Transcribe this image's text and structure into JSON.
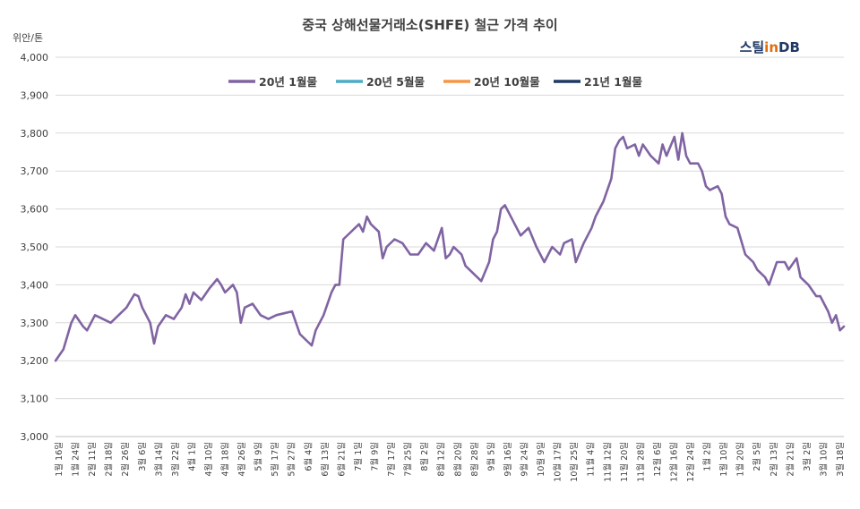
{
  "chart_data": {
    "type": "line",
    "title": "중국 상해선물거래소(SHFE) 철근 가격 추이",
    "ylabel": "위안/톤",
    "ylim": [
      3000,
      4000
    ],
    "yticks": [
      "3,000",
      "3,100",
      "3,200",
      "3,300",
      "3,400",
      "3,500",
      "3,600",
      "3,700",
      "3,800",
      "3,900",
      "4,000"
    ],
    "grid": "horizontal",
    "legend_position": "top",
    "logo": {
      "part1": "스틸",
      "part2": "in",
      "part3": " DB"
    },
    "x_labels": [
      "1월 16일",
      "1월 24일",
      "2월 11일",
      "2월 18일",
      "2월 26일",
      "3월 6일",
      "3월 14일",
      "3월 22일",
      "4월 1일",
      "4월 10일",
      "4월 18일",
      "4월 26일",
      "5월 9일",
      "5월 17일",
      "5월 27일",
      "6월 4일",
      "6월 13일",
      "6월 21일",
      "7월 1일",
      "7월 9일",
      "7월 17일",
      "7월 25일",
      "8월 2일",
      "8월 12일",
      "8월 20일",
      "8월 28일",
      "9월 5일",
      "9월 16일",
      "9월 24일",
      "10월 9일",
      "10월 17일",
      "10월 25일",
      "11월 4일",
      "11월 12일",
      "11월 20일",
      "11월 28일",
      "12월 6일",
      "12월 16일",
      "12월 24일",
      "1월 2일",
      "1월 10일",
      "1월 20일",
      "2월 5일",
      "2월 13일",
      "2월 21일",
      "3월 2일",
      "3월 10일",
      "3월 18일"
    ],
    "x_count": 200,
    "series": [
      {
        "name": "20년 1월물",
        "color": "#8064a2",
        "start_index": 0,
        "points": [
          [
            0,
            3200
          ],
          [
            2,
            3230
          ],
          [
            4,
            3300
          ],
          [
            5,
            3320
          ],
          [
            7,
            3290
          ],
          [
            8,
            3280
          ],
          [
            10,
            3320
          ],
          [
            12,
            3310
          ],
          [
            14,
            3300
          ],
          [
            16,
            3320
          ],
          [
            18,
            3340
          ],
          [
            20,
            3375
          ],
          [
            21,
            3370
          ],
          [
            22,
            3340
          ],
          [
            24,
            3300
          ],
          [
            25,
            3245
          ],
          [
            26,
            3290
          ],
          [
            28,
            3320
          ],
          [
            30,
            3310
          ],
          [
            32,
            3340
          ],
          [
            33,
            3375
          ],
          [
            34,
            3350
          ],
          [
            35,
            3380
          ],
          [
            37,
            3360
          ],
          [
            39,
            3390
          ],
          [
            41,
            3415
          ],
          [
            42,
            3400
          ],
          [
            43,
            3380
          ],
          [
            45,
            3400
          ],
          [
            46,
            3380
          ],
          [
            47,
            3300
          ],
          [
            48,
            3340
          ],
          [
            50,
            3350
          ],
          [
            52,
            3320
          ],
          [
            54,
            3310
          ],
          [
            56,
            3320
          ],
          [
            58,
            3325
          ],
          [
            60,
            3330
          ],
          [
            62,
            3270
          ],
          [
            64,
            3250
          ],
          [
            65,
            3240
          ],
          [
            66,
            3280
          ],
          [
            68,
            3320
          ],
          [
            70,
            3380
          ],
          [
            71,
            3400
          ],
          [
            72,
            3400
          ],
          [
            73,
            3520
          ],
          [
            75,
            3540
          ],
          [
            77,
            3560
          ],
          [
            78,
            3540
          ],
          [
            79,
            3580
          ],
          [
            80,
            3560
          ],
          [
            82,
            3540
          ],
          [
            83,
            3470
          ],
          [
            84,
            3500
          ],
          [
            86,
            3520
          ],
          [
            88,
            3510
          ],
          [
            90,
            3480
          ],
          [
            92,
            3480
          ],
          [
            94,
            3510
          ],
          [
            96,
            3490
          ],
          [
            97,
            3520
          ],
          [
            98,
            3550
          ],
          [
            99,
            3470
          ],
          [
            100,
            3480
          ],
          [
            101,
            3500
          ],
          [
            103,
            3480
          ],
          [
            104,
            3450
          ],
          [
            105,
            3440
          ],
          [
            107,
            3420
          ],
          [
            108,
            3410
          ],
          [
            110,
            3460
          ],
          [
            111,
            3520
          ],
          [
            112,
            3540
          ],
          [
            113,
            3600
          ],
          [
            114,
            3610
          ],
          [
            116,
            3570
          ],
          [
            118,
            3530
          ],
          [
            120,
            3550
          ],
          [
            122,
            3500
          ],
          [
            124,
            3460
          ],
          [
            126,
            3500
          ],
          [
            128,
            3480
          ],
          [
            129,
            3510
          ],
          [
            131,
            3520
          ],
          [
            132,
            3460
          ],
          [
            134,
            3510
          ],
          [
            136,
            3550
          ],
          [
            137,
            3580
          ],
          [
            139,
            3620
          ],
          [
            141,
            3680
          ],
          [
            142,
            3760
          ],
          [
            143,
            3780
          ],
          [
            144,
            3790
          ],
          [
            145,
            3760
          ],
          [
            147,
            3770
          ],
          [
            148,
            3740
          ],
          [
            149,
            3770
          ],
          [
            151,
            3740
          ],
          [
            153,
            3720
          ],
          [
            154,
            3770
          ],
          [
            155,
            3740
          ],
          [
            157,
            3790
          ],
          [
            158,
            3730
          ],
          [
            159,
            3800
          ],
          [
            160,
            3740
          ],
          [
            161,
            3720
          ],
          [
            163,
            3720
          ],
          [
            164,
            3700
          ],
          [
            165,
            3660
          ],
          [
            166,
            3650
          ],
          [
            168,
            3660
          ],
          [
            169,
            3640
          ],
          [
            170,
            3580
          ],
          [
            171,
            3560
          ],
          [
            173,
            3550
          ],
          [
            175,
            3480
          ],
          [
            177,
            3460
          ],
          [
            178,
            3440
          ],
          [
            179,
            3430
          ],
          [
            180,
            3420
          ],
          [
            181,
            3400
          ],
          [
            183,
            3460
          ],
          [
            185,
            3460
          ],
          [
            186,
            3440
          ],
          [
            188,
            3470
          ],
          [
            189,
            3420
          ],
          [
            191,
            3400
          ],
          [
            193,
            3370
          ],
          [
            194,
            3370
          ],
          [
            196,
            3330
          ],
          [
            197,
            3300
          ],
          [
            198,
            3320
          ],
          [
            199,
            3280
          ],
          [
            200,
            3290
          ]
        ]
      },
      {
        "name": "20년 5월물",
        "color": "#4bacc6",
        "start_index": 0,
        "points": []
      },
      {
        "name": "20년 10월물",
        "color": "#f79646",
        "start_index": 0,
        "points": []
      },
      {
        "name": "21년 1월물",
        "color": "#1f3864",
        "start_index": 0,
        "points": []
      }
    ]
  }
}
